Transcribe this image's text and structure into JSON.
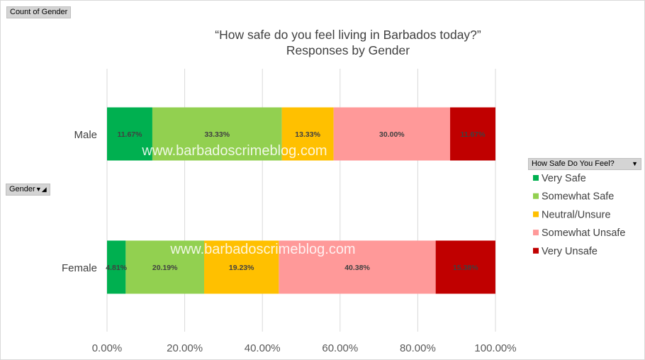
{
  "pivot": {
    "values_button": "Count of Gender",
    "axis_button": "Gender",
    "legend_button": "How Safe Do You Feel?"
  },
  "watermark": "www.barbadoscrimeblog.com",
  "chart_data": {
    "type": "bar",
    "orientation": "horizontal",
    "stacked": "percent",
    "title": [
      "“How safe do you feel living in Barbados today?”",
      "Responses by Gender"
    ],
    "categories": [
      "Male",
      "Female"
    ],
    "series": [
      {
        "name": "Very Safe",
        "color": "#00b050",
        "values": [
          11.67,
          4.81
        ],
        "labels": [
          "11.67%",
          "4.81%"
        ]
      },
      {
        "name": "Somewhat Safe",
        "color": "#92d050",
        "values": [
          33.33,
          20.19
        ],
        "labels": [
          "33.33%",
          "20.19%"
        ]
      },
      {
        "name": "Neutral/Unsure",
        "color": "#ffc000",
        "values": [
          13.33,
          19.23
        ],
        "labels": [
          "13.33%",
          "19.23%"
        ]
      },
      {
        "name": "Somewhat Unsafe",
        "color": "#ff9999",
        "values": [
          30.0,
          40.38
        ],
        "labels": [
          "30.00%",
          "40.38%"
        ]
      },
      {
        "name": "Very Unsafe",
        "color": "#c00000",
        "values": [
          11.67,
          15.38
        ],
        "labels": [
          "11.67%",
          "15.38%"
        ]
      }
    ],
    "x_ticks": [
      "0.00%",
      "20.00%",
      "40.00%",
      "60.00%",
      "80.00%",
      "100.00%"
    ],
    "xlim": [
      0,
      100
    ],
    "grid": "vertical",
    "legend_position": "right"
  }
}
